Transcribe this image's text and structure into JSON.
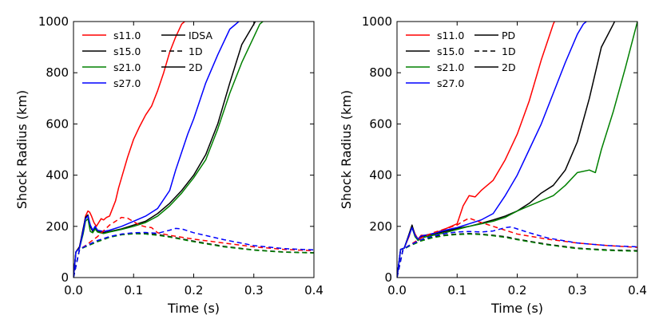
{
  "chart_data": [
    {
      "type": "line",
      "title": "",
      "xlabel": "Time (s)",
      "ylabel": "Shock Radius (km)",
      "xlim": [
        0.0,
        0.4
      ],
      "ylim": [
        0,
        1000
      ],
      "xticks": [
        "0.0",
        "0.1",
        "0.2",
        "0.3",
        "0.4"
      ],
      "yticks": [
        "0",
        "200",
        "400",
        "600",
        "800",
        "1000"
      ],
      "xtick_values": [
        0.0,
        0.1,
        0.2,
        0.3,
        0.4
      ],
      "ytick_values": [
        0,
        200,
        400,
        600,
        800,
        1000
      ],
      "grid": false,
      "legend_colors": [
        {
          "label": "s11.0",
          "color": "#ff0000"
        },
        {
          "label": "s15.0",
          "color": "#000000"
        },
        {
          "label": "s21.0",
          "color": "#008000"
        },
        {
          "label": "s27.0",
          "color": "#0000ff"
        }
      ],
      "legend_styles": [
        {
          "label": "IDSA",
          "style": "solid"
        },
        {
          "label": "1D",
          "style": "dashed"
        },
        {
          "label": "2D",
          "style": "solid"
        }
      ],
      "series": [
        {
          "name": "s11.0 2D",
          "color": "#ff0000",
          "style": "solid",
          "x": [
            0,
            0.004,
            0.01,
            0.016,
            0.02,
            0.024,
            0.027,
            0.03,
            0.034,
            0.038,
            0.042,
            0.046,
            0.05,
            0.055,
            0.06,
            0.065,
            0.07,
            0.075,
            0.08,
            0.09,
            0.1,
            0.11,
            0.12,
            0.13,
            0.14,
            0.15,
            0.16,
            0.17,
            0.18,
            0.185
          ],
          "y": [
            0,
            100,
            120,
            180,
            240,
            260,
            255,
            240,
            215,
            200,
            215,
            230,
            225,
            235,
            240,
            270,
            300,
            350,
            390,
            470,
            540,
            590,
            635,
            670,
            730,
            800,
            880,
            940,
            990,
            1000
          ]
        },
        {
          "name": "s15.0 2D",
          "color": "#000000",
          "style": "solid",
          "x": [
            0,
            0.004,
            0.01,
            0.016,
            0.02,
            0.024,
            0.028,
            0.032,
            0.036,
            0.04,
            0.05,
            0.06,
            0.08,
            0.1,
            0.12,
            0.14,
            0.16,
            0.18,
            0.2,
            0.22,
            0.24,
            0.26,
            0.28,
            0.3,
            0.3025
          ],
          "y": [
            0,
            100,
            120,
            190,
            235,
            245,
            200,
            180,
            195,
            180,
            175,
            180,
            190,
            205,
            220,
            250,
            290,
            340,
            400,
            480,
            600,
            760,
            910,
            990,
            1000
          ]
        },
        {
          "name": "s21.0 2D",
          "color": "#008000",
          "style": "solid",
          "x": [
            0,
            0.004,
            0.01,
            0.016,
            0.02,
            0.024,
            0.028,
            0.032,
            0.036,
            0.04,
            0.05,
            0.06,
            0.08,
            0.1,
            0.12,
            0.14,
            0.16,
            0.18,
            0.2,
            0.22,
            0.24,
            0.26,
            0.28,
            0.3,
            0.31,
            0.315
          ],
          "y": [
            0,
            100,
            115,
            170,
            220,
            230,
            180,
            175,
            190,
            178,
            172,
            178,
            188,
            200,
            215,
            240,
            280,
            330,
            390,
            460,
            580,
            720,
            840,
            940,
            990,
            1000
          ]
        },
        {
          "name": "s27.0 2D",
          "color": "#0000ff",
          "style": "solid",
          "x": [
            0,
            0.004,
            0.01,
            0.016,
            0.02,
            0.024,
            0.028,
            0.032,
            0.036,
            0.04,
            0.05,
            0.06,
            0.08,
            0.1,
            0.12,
            0.14,
            0.16,
            0.17,
            0.18,
            0.19,
            0.2,
            0.21,
            0.22,
            0.24,
            0.26,
            0.275
          ],
          "y": [
            0,
            100,
            115,
            180,
            230,
            240,
            205,
            185,
            200,
            185,
            180,
            185,
            200,
            220,
            240,
            270,
            340,
            420,
            490,
            560,
            620,
            690,
            760,
            870,
            970,
            1000
          ]
        },
        {
          "name": "s11.0 1D",
          "color": "#ff0000",
          "style": "dashed",
          "x": [
            0,
            0.01,
            0.02,
            0.04,
            0.06,
            0.08,
            0.09,
            0.1,
            0.11,
            0.12,
            0.13,
            0.14,
            0.16,
            0.2,
            0.25,
            0.3,
            0.35,
            0.4
          ],
          "y": [
            0,
            110,
            125,
            160,
            205,
            235,
            232,
            218,
            205,
            198,
            195,
            175,
            165,
            150,
            135,
            120,
            110,
            105
          ]
        },
        {
          "name": "s15.0 1D",
          "color": "#000000",
          "style": "dashed",
          "x": [
            0,
            0.01,
            0.02,
            0.04,
            0.06,
            0.08,
            0.1,
            0.12,
            0.14,
            0.16,
            0.2,
            0.25,
            0.3,
            0.35,
            0.4
          ],
          "y": [
            0,
            110,
            122,
            142,
            158,
            168,
            172,
            172,
            168,
            160,
            142,
            122,
            108,
            100,
            97
          ]
        },
        {
          "name": "s21.0 1D",
          "color": "#008000",
          "style": "dashed",
          "x": [
            0,
            0.01,
            0.02,
            0.04,
            0.06,
            0.08,
            0.1,
            0.12,
            0.14,
            0.16,
            0.2,
            0.25,
            0.3,
            0.35,
            0.4
          ],
          "y": [
            0,
            110,
            120,
            140,
            157,
            167,
            171,
            170,
            165,
            158,
            140,
            120,
            107,
            99,
            96
          ]
        },
        {
          "name": "s27.0 1D",
          "color": "#0000ff",
          "style": "dashed",
          "x": [
            0,
            0.01,
            0.02,
            0.04,
            0.06,
            0.08,
            0.1,
            0.12,
            0.14,
            0.16,
            0.17,
            0.18,
            0.2,
            0.25,
            0.3,
            0.35,
            0.4
          ],
          "y": [
            0,
            110,
            123,
            145,
            160,
            170,
            175,
            176,
            173,
            185,
            192,
            190,
            175,
            148,
            125,
            113,
            108
          ]
        }
      ]
    },
    {
      "type": "line",
      "title": "",
      "xlabel": "Time (s)",
      "ylabel": "Shock Radius (km)",
      "xlim": [
        0.0,
        0.4
      ],
      "ylim": [
        0,
        1000
      ],
      "xticks": [
        "0.0",
        "0.1",
        "0.2",
        "0.3",
        "0.4"
      ],
      "yticks": [
        "0",
        "200",
        "400",
        "600",
        "800",
        "1000"
      ],
      "xtick_values": [
        0.0,
        0.1,
        0.2,
        0.3,
        0.4
      ],
      "ytick_values": [
        0,
        200,
        400,
        600,
        800,
        1000
      ],
      "grid": false,
      "legend_colors": [
        {
          "label": "s11.0",
          "color": "#ff0000"
        },
        {
          "label": "s15.0",
          "color": "#000000"
        },
        {
          "label": "s21.0",
          "color": "#008000"
        },
        {
          "label": "s27.0",
          "color": "#0000ff"
        }
      ],
      "legend_styles": [
        {
          "label": "PD",
          "style": "solid"
        },
        {
          "label": "1D",
          "style": "dashed"
        },
        {
          "label": "2D",
          "style": "solid"
        }
      ],
      "series": [
        {
          "name": "s11.0 2D",
          "color": "#ff0000",
          "style": "solid",
          "x": [
            0,
            0.006,
            0.012,
            0.02,
            0.025,
            0.03,
            0.035,
            0.04,
            0.05,
            0.06,
            0.07,
            0.08,
            0.09,
            0.1,
            0.11,
            0.12,
            0.13,
            0.14,
            0.16,
            0.18,
            0.2,
            0.22,
            0.24,
            0.26,
            0.262
          ],
          "y": [
            0,
            110,
            115,
            160,
            200,
            170,
            150,
            165,
            165,
            170,
            180,
            190,
            200,
            210,
            280,
            320,
            315,
            340,
            380,
            460,
            560,
            690,
            850,
            990,
            1000
          ]
        },
        {
          "name": "s15.0 2D",
          "color": "#000000",
          "style": "solid",
          "x": [
            0,
            0.006,
            0.012,
            0.02,
            0.025,
            0.03,
            0.035,
            0.04,
            0.06,
            0.08,
            0.1,
            0.12,
            0.14,
            0.16,
            0.18,
            0.2,
            0.22,
            0.24,
            0.26,
            0.28,
            0.3,
            0.32,
            0.34,
            0.36,
            0.362
          ],
          "y": [
            0,
            110,
            115,
            170,
            205,
            165,
            145,
            160,
            170,
            180,
            192,
            200,
            212,
            225,
            240,
            260,
            290,
            330,
            360,
            420,
            530,
            700,
            900,
            990,
            1000
          ]
        },
        {
          "name": "s21.0 2D",
          "color": "#008000",
          "style": "solid",
          "x": [
            0,
            0.006,
            0.012,
            0.02,
            0.025,
            0.03,
            0.035,
            0.04,
            0.06,
            0.08,
            0.1,
            0.12,
            0.14,
            0.16,
            0.18,
            0.2,
            0.22,
            0.24,
            0.26,
            0.28,
            0.3,
            0.32,
            0.33,
            0.34,
            0.36,
            0.38,
            0.4
          ],
          "y": [
            0,
            110,
            115,
            165,
            195,
            160,
            145,
            155,
            165,
            175,
            188,
            200,
            210,
            220,
            235,
            260,
            280,
            300,
            320,
            360,
            410,
            420,
            410,
            500,
            650,
            820,
            1000
          ]
        },
        {
          "name": "s27.0 2D",
          "color": "#0000ff",
          "style": "solid",
          "x": [
            0,
            0.006,
            0.012,
            0.02,
            0.025,
            0.03,
            0.035,
            0.04,
            0.06,
            0.08,
            0.1,
            0.12,
            0.14,
            0.16,
            0.18,
            0.2,
            0.22,
            0.24,
            0.26,
            0.28,
            0.3,
            0.31,
            0.315
          ],
          "y": [
            0,
            110,
            115,
            165,
            195,
            165,
            150,
            162,
            172,
            185,
            195,
            210,
            225,
            250,
            320,
            400,
            500,
            600,
            720,
            840,
            950,
            990,
            1000
          ]
        },
        {
          "name": "s11.0 1D",
          "color": "#ff0000",
          "style": "dashed",
          "x": [
            0,
            0.01,
            0.02,
            0.04,
            0.06,
            0.08,
            0.1,
            0.11,
            0.12,
            0.14,
            0.16,
            0.18,
            0.2,
            0.25,
            0.3,
            0.35,
            0.4
          ],
          "y": [
            0,
            110,
            125,
            155,
            175,
            190,
            205,
            220,
            232,
            215,
            200,
            185,
            170,
            150,
            135,
            125,
            118
          ]
        },
        {
          "name": "s15.0 1D",
          "color": "#000000",
          "style": "dashed",
          "x": [
            0,
            0.01,
            0.02,
            0.04,
            0.06,
            0.08,
            0.1,
            0.12,
            0.14,
            0.16,
            0.18,
            0.2,
            0.25,
            0.3,
            0.35,
            0.4
          ],
          "y": [
            0,
            110,
            125,
            145,
            158,
            166,
            170,
            172,
            170,
            165,
            160,
            150,
            130,
            115,
            108,
            105
          ]
        },
        {
          "name": "s21.0 1D",
          "color": "#008000",
          "style": "dashed",
          "x": [
            0,
            0.01,
            0.02,
            0.04,
            0.06,
            0.08,
            0.1,
            0.12,
            0.14,
            0.16,
            0.18,
            0.2,
            0.25,
            0.3,
            0.35,
            0.4
          ],
          "y": [
            0,
            110,
            122,
            143,
            156,
            164,
            168,
            170,
            168,
            163,
            157,
            148,
            128,
            113,
            106,
            103
          ]
        },
        {
          "name": "s27.0 1D",
          "color": "#0000ff",
          "style": "dashed",
          "x": [
            0,
            0.01,
            0.02,
            0.04,
            0.06,
            0.08,
            0.1,
            0.12,
            0.14,
            0.16,
            0.18,
            0.19,
            0.2,
            0.22,
            0.25,
            0.3,
            0.35,
            0.4
          ],
          "y": [
            0,
            110,
            125,
            148,
            162,
            172,
            178,
            180,
            178,
            182,
            195,
            198,
            190,
            175,
            155,
            135,
            125,
            120
          ]
        }
      ]
    }
  ]
}
